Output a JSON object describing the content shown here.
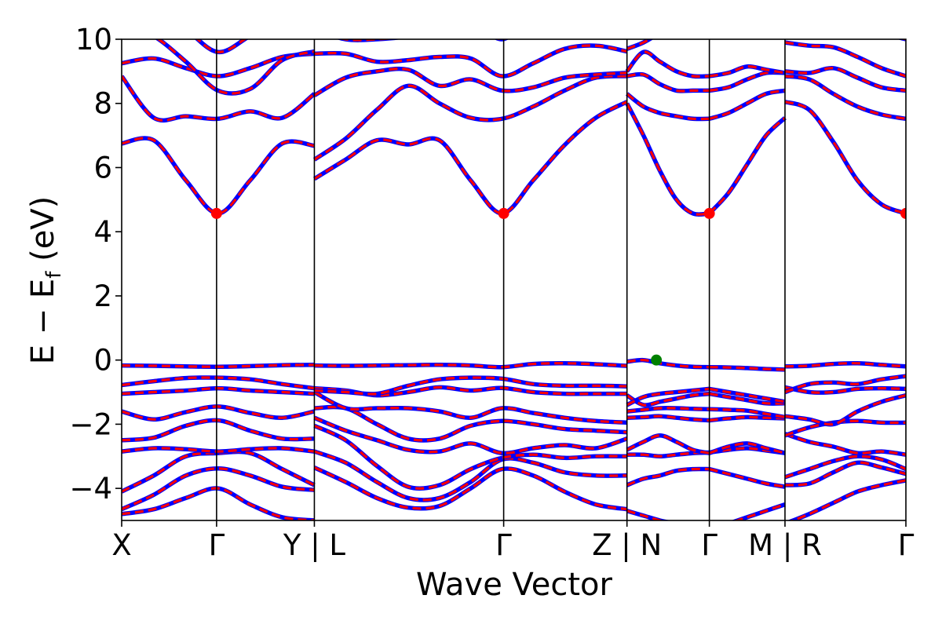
{
  "chart_data": {
    "type": "line",
    "title": "",
    "xlabel": "Wave Vector",
    "ylabel": "E − E",
    "ylabel_sub": "f",
    "ylabel_unit": " (eV)",
    "ylim": [
      -5,
      10
    ],
    "yticks": [
      {
        "value": 10,
        "label": "10"
      },
      {
        "value": 8,
        "label": "8"
      },
      {
        "value": 6,
        "label": "6"
      },
      {
        "value": 4,
        "label": "4"
      },
      {
        "value": 2,
        "label": "2"
      },
      {
        "value": 0,
        "label": "0"
      },
      {
        "value": -2,
        "label": "−2"
      },
      {
        "value": -4,
        "label": "−4"
      }
    ],
    "xlim": [
      0,
      1
    ],
    "kpoint_ticks": [
      {
        "x": 0.0,
        "label": "X"
      },
      {
        "x": 0.197,
        "label": "Γ"
      },
      {
        "x": 0.4,
        "label": "Y | L"
      },
      {
        "x": 0.793,
        "label": "Γ"
      },
      {
        "x": 1.049,
        "label": "Z | N"
      },
      {
        "x": 1.22,
        "label": "Γ"
      },
      {
        "x": 1.377,
        "label": "M | R"
      },
      {
        "x": 1.628,
        "label": "Γ"
      }
    ],
    "x_max": 1.628,
    "segment_boundaries": [
      0.197,
      0.4,
      0.793,
      1.049,
      1.22,
      1.377
    ],
    "line_colors": {
      "spin_down": "#0000ff",
      "spin_up": "#ff0000"
    },
    "cbm": {
      "x": [
        0.197,
        0.793,
        1.22,
        1.628
      ],
      "y": 4.57,
      "color": "#ff0000"
    },
    "vbm": {
      "x": 1.11,
      "y": 0.0,
      "color": "#008000"
    },
    "segments": [
      {
        "x0": 0.0,
        "x1": 0.4,
        "bands": [
          [
            -4.8,
            -4.65,
            -4.3,
            -4.0,
            -4.5,
            -4.9,
            -5.0
          ],
          [
            -4.65,
            -4.2,
            -3.6,
            -3.38,
            -3.6,
            -3.95,
            -4.05
          ],
          [
            -4.1,
            -3.6,
            -3.0,
            -2.9,
            -2.9,
            -3.4,
            -3.9
          ],
          [
            -2.85,
            -2.75,
            -2.78,
            -2.85,
            -2.78,
            -2.75,
            -2.85
          ],
          [
            -2.5,
            -2.42,
            -2.05,
            -1.88,
            -2.2,
            -2.45,
            -2.45
          ],
          [
            -1.6,
            -1.85,
            -1.62,
            -1.45,
            -1.65,
            -1.8,
            -1.6
          ],
          [
            -1.05,
            -1.0,
            -0.95,
            -0.88,
            -0.95,
            -1.0,
            -1.05
          ],
          [
            -0.78,
            -0.66,
            -0.56,
            -0.55,
            -0.6,
            -0.75,
            -0.88
          ],
          [
            -0.17,
            -0.18,
            -0.2,
            -0.21,
            -0.19,
            -0.16,
            -0.15
          ],
          [
            6.75,
            6.85,
            5.6,
            4.57,
            5.6,
            6.75,
            6.68
          ],
          [
            8.85,
            7.55,
            7.6,
            7.52,
            7.75,
            7.55,
            8.3
          ],
          [
            9.25,
            9.4,
            9.1,
            8.85,
            9.1,
            9.45,
            9.55
          ],
          [
            10.5,
            10.1,
            9.3,
            8.4,
            8.45,
            9.35,
            9.62
          ],
          [
            11.0,
            10.9,
            10.3,
            9.6,
            10.1,
            10.6,
            10.9
          ]
        ]
      },
      {
        "x0": 0.4,
        "x1": 1.049,
        "bands": [
          [
            -3.35,
            -3.8,
            -4.3,
            -4.6,
            -4.55,
            -4.0,
            -3.4,
            -3.6,
            -4.1,
            -4.5,
            -4.65
          ],
          [
            -2.85,
            -3.2,
            -3.8,
            -4.3,
            -4.3,
            -3.8,
            -3.1,
            -3.2,
            -3.5,
            -3.6,
            -3.6
          ],
          [
            -2.05,
            -2.5,
            -3.3,
            -3.95,
            -3.9,
            -3.4,
            -3.05,
            -2.95,
            -3.05,
            -3.0,
            -3.0
          ],
          [
            -1.8,
            -2.2,
            -2.5,
            -2.8,
            -2.85,
            -2.6,
            -2.9,
            -2.75,
            -2.65,
            -2.75,
            -2.45
          ],
          [
            -1.5,
            -1.5,
            -2.0,
            -2.45,
            -2.45,
            -2.05,
            -1.9,
            -2.0,
            -2.15,
            -2.2,
            -2.25
          ],
          [
            -1.0,
            -1.5,
            -1.5,
            -1.5,
            -1.6,
            -1.8,
            -1.5,
            -1.65,
            -1.8,
            -1.9,
            -1.95
          ],
          [
            -0.88,
            -0.95,
            -1.1,
            -1.0,
            -0.85,
            -0.95,
            -0.87,
            -1.0,
            -1.05,
            -1.05,
            -1.05
          ],
          [
            -0.95,
            -1.0,
            -1.05,
            -0.8,
            -0.6,
            -0.55,
            -0.58,
            -0.75,
            -0.8,
            -0.8,
            -0.82
          ],
          [
            -0.17,
            -0.18,
            -0.17,
            -0.16,
            -0.15,
            -0.17,
            -0.22,
            -0.12,
            -0.1,
            -0.13,
            -0.18
          ],
          [
            5.65,
            6.25,
            6.85,
            6.72,
            6.85,
            5.6,
            4.57,
            5.6,
            6.7,
            7.55,
            8.05
          ],
          [
            6.25,
            6.9,
            7.8,
            8.55,
            8.0,
            7.55,
            7.52,
            7.9,
            8.4,
            8.8,
            8.85
          ],
          [
            8.25,
            8.8,
            9.0,
            9.05,
            8.55,
            8.75,
            8.4,
            8.5,
            8.8,
            8.9,
            8.95
          ],
          [
            9.55,
            9.55,
            9.3,
            9.35,
            9.45,
            9.4,
            8.85,
            9.25,
            9.7,
            9.8,
            9.62
          ],
          [
            10.3,
            10.0,
            10.0,
            10.1,
            10.4,
            10.6,
            10.0,
            10.7,
            11.0,
            11.0,
            11.0
          ]
        ]
      },
      {
        "x0": 1.049,
        "x1": 1.22,
        "bands": [
          [
            -4.7,
            -4.85,
            -5.0,
            -5.1,
            -5.2,
            -5.3
          ],
          [
            -3.9,
            -3.7,
            -3.6,
            -3.45,
            -3.4,
            -3.4
          ],
          [
            -2.95,
            -2.95,
            -3.0,
            -2.95,
            -2.9,
            -2.88
          ],
          [
            -2.8,
            -2.55,
            -2.35,
            -2.55,
            -2.8,
            -2.9
          ],
          [
            -1.8,
            -1.78,
            -1.75,
            -1.8,
            -1.85,
            -1.88
          ],
          [
            -1.6,
            -1.55,
            -1.5,
            -1.5,
            -1.52,
            -1.53
          ],
          [
            -1.1,
            -1.4,
            -1.3,
            -1.2,
            -1.1,
            -1.05
          ],
          [
            -1.4,
            -1.15,
            -1.05,
            -1.0,
            -0.95,
            -0.9
          ],
          [
            -0.05,
            0.0,
            -0.1,
            -0.17,
            -0.21,
            -0.22
          ],
          [
            8.0,
            7.0,
            5.9,
            5.0,
            4.57,
            4.57
          ],
          [
            8.3,
            7.9,
            7.7,
            7.6,
            7.52,
            7.52
          ],
          [
            8.85,
            8.9,
            8.6,
            8.4,
            8.4,
            8.4
          ],
          [
            9.0,
            9.6,
            9.3,
            9.0,
            8.85,
            8.85
          ],
          [
            9.7,
            9.9,
            10.2,
            10.5,
            10.8,
            11.0
          ]
        ]
      },
      {
        "x0": 1.22,
        "x1": 1.377,
        "bands": [
          [
            -5.3,
            -5.1,
            -4.9,
            -4.7,
            -4.5
          ],
          [
            -3.4,
            -3.55,
            -3.7,
            -3.85,
            -3.95
          ],
          [
            -2.88,
            -2.8,
            -2.75,
            -2.82,
            -2.9
          ],
          [
            -2.9,
            -2.7,
            -2.6,
            -2.75,
            -2.9
          ],
          [
            -1.88,
            -1.82,
            -1.78,
            -1.8,
            -1.82
          ],
          [
            -1.53,
            -1.55,
            -1.58,
            -1.68,
            -1.78
          ],
          [
            -1.05,
            -1.15,
            -1.25,
            -1.35,
            -1.35
          ],
          [
            -0.9,
            -1.0,
            -1.1,
            -1.2,
            -1.3
          ],
          [
            -0.22,
            -0.23,
            -0.25,
            -0.28,
            -0.3
          ],
          [
            4.57,
            5.2,
            6.1,
            7.0,
            7.55
          ],
          [
            7.52,
            7.7,
            8.0,
            8.3,
            8.4
          ],
          [
            8.4,
            8.5,
            8.75,
            8.95,
            8.95
          ],
          [
            8.85,
            8.95,
            9.15,
            9.05,
            8.95
          ],
          [
            11.0,
            10.8,
            10.6,
            10.4,
            10.3
          ]
        ]
      },
      {
        "x0": 1.377,
        "x1": 1.628,
        "bands": [
          [
            -5.1,
            -4.8,
            -4.45,
            -4.1,
            -3.9,
            -3.75
          ],
          [
            -3.65,
            -3.4,
            -3.15,
            -3.0,
            -3.1,
            -3.4
          ],
          [
            -3.9,
            -3.85,
            -3.5,
            -3.2,
            -3.35,
            -3.55
          ],
          [
            -2.3,
            -2.55,
            -2.7,
            -2.9,
            -2.85,
            -2.95
          ],
          [
            -2.35,
            -2.1,
            -1.95,
            -1.9,
            -1.95,
            -1.95
          ],
          [
            -1.75,
            -1.85,
            -2.0,
            -1.6,
            -1.3,
            -1.1
          ],
          [
            -0.85,
            -1.0,
            -1.0,
            -0.9,
            -0.88,
            -0.9
          ],
          [
            -1.0,
            -0.75,
            -0.7,
            -0.75,
            -0.6,
            -0.5
          ],
          [
            -0.2,
            -0.18,
            -0.12,
            -0.1,
            -0.15,
            -0.2
          ],
          [
            8.05,
            7.8,
            6.8,
            5.6,
            4.85,
            4.57
          ],
          [
            8.85,
            8.75,
            8.3,
            7.9,
            7.65,
            7.52
          ],
          [
            9.0,
            8.95,
            9.1,
            8.8,
            8.5,
            8.4
          ],
          [
            9.9,
            9.8,
            9.75,
            9.45,
            9.1,
            8.85
          ],
          [
            10.2,
            10.5,
            10.8,
            10.5,
            10.2,
            10.0
          ]
        ]
      }
    ]
  }
}
